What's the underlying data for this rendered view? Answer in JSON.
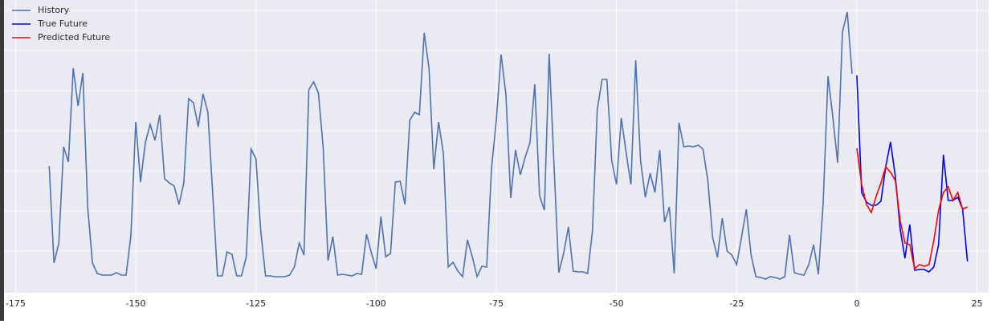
{
  "chart_data": {
    "type": "line",
    "xlim": [
      -177.4,
      27.4
    ],
    "xticks": [
      -175,
      -150,
      -125,
      -100,
      -75,
      -50,
      -25,
      0,
      25
    ],
    "ylim": [
      -4.04,
      3.26
    ],
    "yticks": [
      -3,
      -2,
      -1,
      0,
      1,
      2,
      3
    ],
    "grid": true,
    "legend": "upper left",
    "series": [
      {
        "name": "History",
        "color": "#4c72b0",
        "x": [
          -168,
          -167,
          -166,
          -165,
          -164,
          -163,
          -162,
          -161,
          -160,
          -159,
          -158,
          -157,
          -156,
          -155,
          -154,
          -153,
          -152,
          -151,
          -150,
          -149,
          -148,
          -147,
          -146,
          -145,
          -144,
          -143,
          -142,
          -141,
          -140,
          -139,
          -138,
          -137,
          -136,
          -135,
          -134,
          -133,
          -132,
          -131,
          -130,
          -129,
          -128,
          -127,
          -126,
          -125,
          -124,
          -123,
          -122,
          -121,
          -120,
          -119,
          -118,
          -117,
          -116,
          -115,
          -114,
          -113,
          -112,
          -111,
          -110,
          -109,
          -108,
          -107,
          -106,
          -105,
          -104,
          -103,
          -102,
          -101,
          -100,
          -99,
          -98,
          -97,
          -96,
          -95,
          -94,
          -93,
          -92,
          -91,
          -90,
          -89,
          -88,
          -87,
          -86,
          -85,
          -84,
          -83,
          -82,
          -81,
          -80,
          -79,
          -78,
          -77,
          -76,
          -75,
          -74,
          -73,
          -72,
          -71,
          -70,
          -69,
          -68,
          -67,
          -66,
          -65,
          -64,
          -63,
          -62,
          -61,
          -60,
          -59,
          -58,
          -57,
          -56,
          -55,
          -54,
          -53,
          -52,
          -51,
          -50,
          -49,
          -48,
          -47,
          -46,
          -45,
          -44,
          -43,
          -42,
          -41,
          -40,
          -39,
          -38,
          -37,
          -36,
          -35,
          -34,
          -33,
          -32,
          -31,
          -30,
          -29,
          -28,
          -27,
          -26,
          -25,
          -24,
          -23,
          -22,
          -21,
          -20,
          -19,
          -18,
          -17,
          -16,
          -15,
          -14,
          -13,
          -12,
          -11,
          -10,
          -9,
          -8,
          -7,
          -6,
          -5,
          -4,
          -3,
          -2,
          -1
        ],
        "values": [
          -0.88,
          -3.3,
          -2.8,
          -0.4,
          -0.78,
          1.56,
          0.62,
          1.44,
          -1.9,
          -3.3,
          -3.56,
          -3.6,
          -3.6,
          -3.6,
          -3.54,
          -3.6,
          -3.6,
          -2.6,
          0.22,
          -1.28,
          -0.3,
          0.16,
          -0.24,
          0.4,
          -1.2,
          -1.3,
          -1.38,
          -1.84,
          -1.3,
          0.8,
          0.7,
          0.1,
          0.92,
          0.46,
          -1.54,
          -3.62,
          -3.62,
          -3.02,
          -3.08,
          -3.62,
          -3.62,
          -3.14,
          -0.46,
          -0.7,
          -2.5,
          -3.62,
          -3.62,
          -3.64,
          -3.64,
          -3.64,
          -3.6,
          -3.4,
          -2.8,
          -3.1,
          1.02,
          1.22,
          0.94,
          -0.44,
          -3.24,
          -2.64,
          -3.6,
          -3.58,
          -3.6,
          -3.62,
          -3.56,
          -3.58,
          -2.58,
          -3.04,
          -3.44,
          -2.14,
          -3.14,
          -3.06,
          -1.28,
          -1.26,
          -1.84,
          0.26,
          0.46,
          0.4,
          2.44,
          1.56,
          -0.96,
          0.22,
          -0.58,
          -3.4,
          -3.28,
          -3.5,
          -3.64,
          -2.72,
          -3.14,
          -3.64,
          -3.38,
          -3.4,
          -0.94,
          0.26,
          1.9,
          0.9,
          -1.68,
          -0.48,
          -1.1,
          -0.66,
          -0.3,
          1.16,
          -1.62,
          -1.98,
          1.92,
          -0.84,
          -3.54,
          -3.06,
          -2.4,
          -3.5,
          -3.52,
          -3.52,
          -3.56,
          -2.5,
          0.52,
          1.28,
          1.28,
          -0.74,
          -1.34,
          0.32,
          -0.54,
          -1.34,
          1.76,
          -0.74,
          -1.66,
          -1.06,
          -1.54,
          -0.48,
          -2.28,
          -1.9,
          -3.56,
          0.2,
          -0.4,
          -0.38,
          -0.4,
          -0.36,
          -0.46,
          -1.24,
          -2.66,
          -3.16,
          -2.18,
          -3.0,
          -3.1,
          -3.34,
          -2.66,
          -1.96,
          -3.1,
          -3.64,
          -3.66,
          -3.7,
          -3.64,
          -3.66,
          -3.7,
          -3.64,
          -2.6,
          -3.54,
          -3.58,
          -3.6,
          -3.34,
          -2.84,
          -3.58,
          -1.78,
          1.36,
          0.34,
          -0.8,
          2.46,
          2.96,
          1.42
        ]
      },
      {
        "name": "True Future",
        "color": "#0000ff",
        "x": [
          0,
          1,
          2,
          3,
          4,
          5,
          6,
          7,
          8,
          9,
          10,
          11,
          12,
          13,
          14,
          15,
          16,
          17,
          18,
          19,
          20,
          21,
          22,
          23
        ],
        "values": [
          1.38,
          -1.54,
          -1.78,
          -1.86,
          -1.86,
          -1.76,
          -0.9,
          -0.28,
          -1.14,
          -2.44,
          -3.18,
          -2.34,
          -3.48,
          -3.46,
          -3.46,
          -3.52,
          -3.4,
          -2.84,
          -0.6,
          -1.74,
          -1.74,
          -1.66,
          -1.96,
          -3.26
        ]
      },
      {
        "name": "Predicted Future",
        "color": "#ff0000",
        "x": [
          0,
          1,
          2,
          3,
          4,
          5,
          6,
          7,
          8,
          9,
          10,
          11,
          12,
          13,
          14,
          15,
          16,
          17,
          18,
          19,
          20,
          21,
          22,
          23
        ],
        "values": [
          -0.44,
          -1.34,
          -1.84,
          -2.04,
          -1.64,
          -1.3,
          -0.9,
          -1.04,
          -1.24,
          -2.24,
          -2.8,
          -2.84,
          -3.44,
          -3.34,
          -3.38,
          -3.34,
          -2.74,
          -1.98,
          -1.54,
          -1.4,
          -1.74,
          -1.54,
          -1.96,
          -1.9
        ]
      }
    ]
  }
}
